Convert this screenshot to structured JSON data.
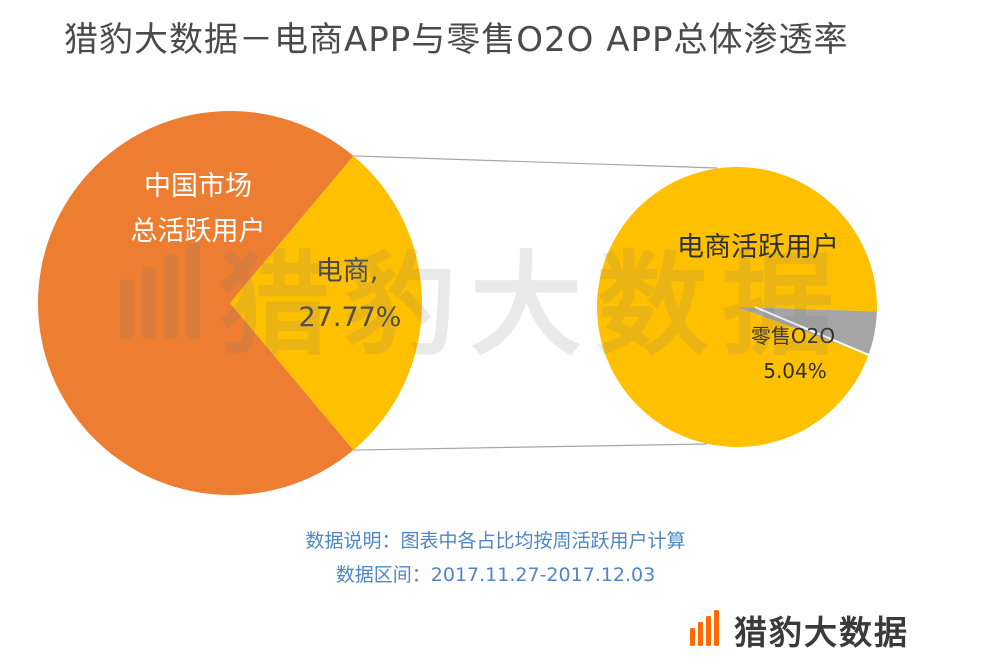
{
  "title": "猎豹大数据－电商APP与零售O2O APP总体渗透率",
  "chart_data": [
    {
      "type": "pie",
      "title": "",
      "slices": [
        {
          "label": "中国市场总活跃用户",
          "value": 72.23,
          "show_value": false
        },
        {
          "label": "电商",
          "value": 27.77,
          "show_value": true
        }
      ],
      "colors": [
        "#ED7D31",
        "#FFC000"
      ]
    },
    {
      "type": "pie",
      "title": "",
      "slices": [
        {
          "label": "电商活跃用户",
          "value": 94.96,
          "show_value": false
        },
        {
          "label": "零售O2O",
          "value": 5.04,
          "show_value": true
        }
      ],
      "colors": [
        "#FFC000",
        "#A5A5A5"
      ]
    }
  ],
  "labels": {
    "main_outer_line1": "中国市场",
    "main_outer_line2": "总活跃用户",
    "main_slice_name": "电商,",
    "main_slice_pct": "27.77%",
    "sub_main_name": "电商活跃用户",
    "sub_slice_name": "零售O2O",
    "sub_slice_pct": "5.04%"
  },
  "notes": {
    "line1": "数据说明：图表中各占比均按周活跃用户计算",
    "line2": "数据区间：2017.11.27-2017.12.03"
  },
  "logo": {
    "text": "猎豹大数据",
    "icon": "cheetah-bars-icon",
    "accent_color": "#FF6A00"
  },
  "watermark": {
    "text": "猎豹大数据",
    "icon": "cheetah-bars-icon"
  },
  "colors": {
    "note": "#4F86C6",
    "title": "#4A4A4A"
  }
}
